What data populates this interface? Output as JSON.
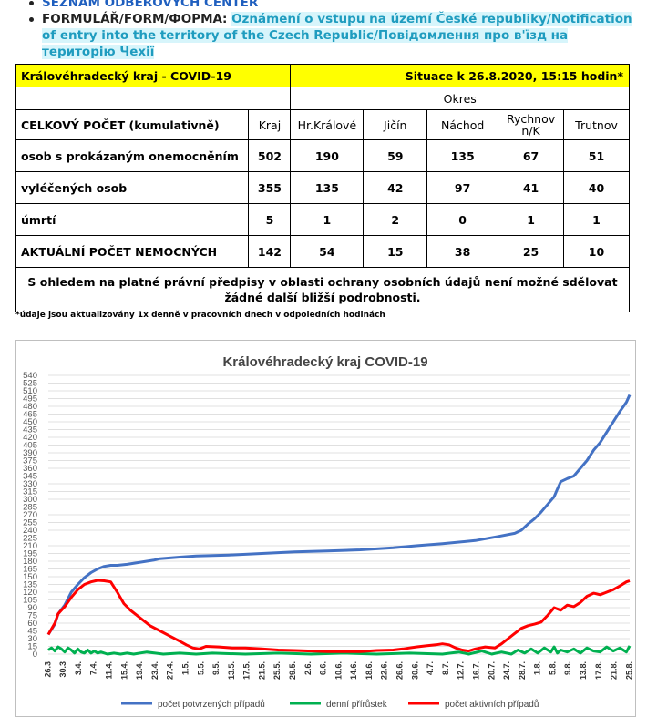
{
  "bullets": [
    {
      "link": "Seznam odběrových center"
    },
    {
      "key": "FORMULÁŘ/FORM/ФОРМА:",
      "text": "Oznámení o vstupu na území České republiky/Notification of entry into the territory of the Czech Republic/Повідомлення про в'їзд на територію Чехії"
    }
  ],
  "table": {
    "title": "Královéhradecký kraj - COVID-19",
    "situation": "Situace k 26.8.2020, 15:15 hodin*",
    "okres_label": "Okres",
    "row_header": "CELKOVÝ POČET (kumulativně)",
    "columns": [
      "Kraj",
      "Hr.Králové",
      "Jičín",
      "Náchod",
      "Rychnov n/K",
      "Trutnov"
    ],
    "rows": [
      {
        "label": "osob s prokázaným onemocněním",
        "values": [
          "502",
          "190",
          "59",
          "135",
          "67",
          "51"
        ]
      },
      {
        "label": "vyléčených osob",
        "values": [
          "355",
          "135",
          "42",
          "97",
          "41",
          "40"
        ]
      },
      {
        "label": "úmrtí",
        "values": [
          "5",
          "1",
          "2",
          "0",
          "1",
          "1"
        ]
      },
      {
        "label": "AKTUÁLNÍ POČET NEMOCNÝCH",
        "values": [
          "142",
          "54",
          "15",
          "38",
          "25",
          "10"
        ]
      }
    ],
    "note": "S ohledem na platné právní předpisy v oblasti ochrany osobních údajů není možné sdělovat žádné další bližší podrobnosti.",
    "footnote": "*údaje jsou aktualizovány 1x denně v pracovních dnech v odpoledních hodinách"
  },
  "chart_data": {
    "type": "line",
    "title": "Královéhradecký kraj COVID-19",
    "x_tick_labels": [
      "26.3",
      "30.3",
      "3.4.",
      "7.4.",
      "11.4.",
      "15.4.",
      "19.4.",
      "23.4.",
      "27.4.",
      "1.5.",
      "5.5.",
      "9.5.",
      "13.5.",
      "17.5.",
      "21.5.",
      "25.5.",
      "29.5.",
      "2.6.",
      "6.6.",
      "10.6.",
      "14.6.",
      "18.6.",
      "22.6.",
      "26.6.",
      "30.6.",
      "4.7.",
      "8.7.",
      "12.7.",
      "16.7.",
      "20.7.",
      "24.7.",
      "28.7.",
      "1.8.",
      "5.8.",
      "9.8.",
      "13.8.",
      "17.8.",
      "21.8.",
      "25.8."
    ],
    "ylim": [
      0,
      540
    ],
    "y_step": 15,
    "legend_position": "bottom",
    "series": [
      {
        "name": "počet potvrzených případů",
        "color": "#4472c4",
        "points": [
          [
            0,
            38
          ],
          [
            2,
            58
          ],
          [
            3,
            78
          ],
          [
            5,
            95
          ],
          [
            7,
            120
          ],
          [
            9,
            135
          ],
          [
            11,
            148
          ],
          [
            13,
            158
          ],
          [
            15,
            165
          ],
          [
            17,
            170
          ],
          [
            19,
            172
          ],
          [
            21,
            172
          ],
          [
            24,
            174
          ],
          [
            28,
            178
          ],
          [
            32,
            182
          ],
          [
            34,
            185
          ],
          [
            40,
            188
          ],
          [
            45,
            190
          ],
          [
            55,
            192
          ],
          [
            65,
            195
          ],
          [
            75,
            198
          ],
          [
            85,
            200
          ],
          [
            95,
            202
          ],
          [
            105,
            206
          ],
          [
            112,
            210
          ],
          [
            120,
            214
          ],
          [
            130,
            220
          ],
          [
            137,
            228
          ],
          [
            142,
            234
          ],
          [
            144,
            240
          ],
          [
            146,
            252
          ],
          [
            148,
            262
          ],
          [
            150,
            275
          ],
          [
            152,
            290
          ],
          [
            154,
            305
          ],
          [
            155,
            320
          ],
          [
            156,
            334
          ],
          [
            158,
            340
          ],
          [
            160,
            345
          ],
          [
            162,
            360
          ],
          [
            164,
            375
          ],
          [
            166,
            395
          ],
          [
            168,
            410
          ],
          [
            170,
            430
          ],
          [
            172,
            450
          ],
          [
            174,
            470
          ],
          [
            176,
            488
          ],
          [
            177,
            502
          ]
        ]
      },
      {
        "name": "denní přírůstek",
        "color": "#00b050",
        "points": [
          [
            0,
            8
          ],
          [
            1,
            12
          ],
          [
            2,
            6
          ],
          [
            3,
            14
          ],
          [
            4,
            10
          ],
          [
            5,
            4
          ],
          [
            6,
            12
          ],
          [
            7,
            8
          ],
          [
            8,
            2
          ],
          [
            9,
            10
          ],
          [
            10,
            4
          ],
          [
            11,
            2
          ],
          [
            12,
            8
          ],
          [
            13,
            2
          ],
          [
            14,
            6
          ],
          [
            15,
            2
          ],
          [
            16,
            4
          ],
          [
            18,
            0
          ],
          [
            20,
            2
          ],
          [
            22,
            0
          ],
          [
            24,
            2
          ],
          [
            26,
            0
          ],
          [
            30,
            4
          ],
          [
            35,
            0
          ],
          [
            40,
            2
          ],
          [
            45,
            0
          ],
          [
            50,
            2
          ],
          [
            60,
            0
          ],
          [
            70,
            2
          ],
          [
            80,
            0
          ],
          [
            90,
            2
          ],
          [
            100,
            0
          ],
          [
            110,
            2
          ],
          [
            120,
            0
          ],
          [
            125,
            4
          ],
          [
            128,
            0
          ],
          [
            132,
            6
          ],
          [
            135,
            0
          ],
          [
            138,
            4
          ],
          [
            141,
            0
          ],
          [
            143,
            8
          ],
          [
            145,
            2
          ],
          [
            147,
            10
          ],
          [
            149,
            2
          ],
          [
            151,
            12
          ],
          [
            153,
            4
          ],
          [
            154,
            14
          ],
          [
            155,
            2
          ],
          [
            156,
            8
          ],
          [
            158,
            4
          ],
          [
            160,
            10
          ],
          [
            162,
            2
          ],
          [
            164,
            12
          ],
          [
            166,
            6
          ],
          [
            168,
            4
          ],
          [
            170,
            14
          ],
          [
            172,
            6
          ],
          [
            174,
            12
          ],
          [
            176,
            4
          ],
          [
            177,
            16
          ]
        ]
      },
      {
        "name": "počet aktivních případů",
        "color": "#ff0000",
        "points": [
          [
            0,
            38
          ],
          [
            2,
            60
          ],
          [
            3,
            78
          ],
          [
            5,
            92
          ],
          [
            7,
            110
          ],
          [
            9,
            125
          ],
          [
            11,
            135
          ],
          [
            13,
            140
          ],
          [
            15,
            143
          ],
          [
            17,
            142
          ],
          [
            19,
            140
          ],
          [
            21,
            120
          ],
          [
            23,
            98
          ],
          [
            25,
            85
          ],
          [
            28,
            70
          ],
          [
            31,
            55
          ],
          [
            34,
            45
          ],
          [
            37,
            35
          ],
          [
            40,
            25
          ],
          [
            42,
            18
          ],
          [
            44,
            12
          ],
          [
            46,
            10
          ],
          [
            48,
            15
          ],
          [
            52,
            14
          ],
          [
            56,
            12
          ],
          [
            60,
            12
          ],
          [
            65,
            10
          ],
          [
            70,
            8
          ],
          [
            75,
            7
          ],
          [
            80,
            6
          ],
          [
            85,
            5
          ],
          [
            90,
            5
          ],
          [
            95,
            5
          ],
          [
            100,
            7
          ],
          [
            105,
            8
          ],
          [
            108,
            10
          ],
          [
            110,
            12
          ],
          [
            112,
            14
          ],
          [
            115,
            16
          ],
          [
            118,
            18
          ],
          [
            120,
            20
          ],
          [
            122,
            18
          ],
          [
            124,
            12
          ],
          [
            126,
            8
          ],
          [
            128,
            6
          ],
          [
            130,
            10
          ],
          [
            133,
            14
          ],
          [
            136,
            12
          ],
          [
            138,
            20
          ],
          [
            140,
            30
          ],
          [
            142,
            40
          ],
          [
            144,
            50
          ],
          [
            146,
            55
          ],
          [
            148,
            58
          ],
          [
            150,
            62
          ],
          [
            152,
            75
          ],
          [
            154,
            90
          ],
          [
            156,
            85
          ],
          [
            158,
            95
          ],
          [
            160,
            92
          ],
          [
            162,
            100
          ],
          [
            164,
            112
          ],
          [
            166,
            118
          ],
          [
            168,
            115
          ],
          [
            170,
            120
          ],
          [
            172,
            125
          ],
          [
            174,
            132
          ],
          [
            176,
            140
          ],
          [
            177,
            142
          ]
        ]
      }
    ]
  }
}
